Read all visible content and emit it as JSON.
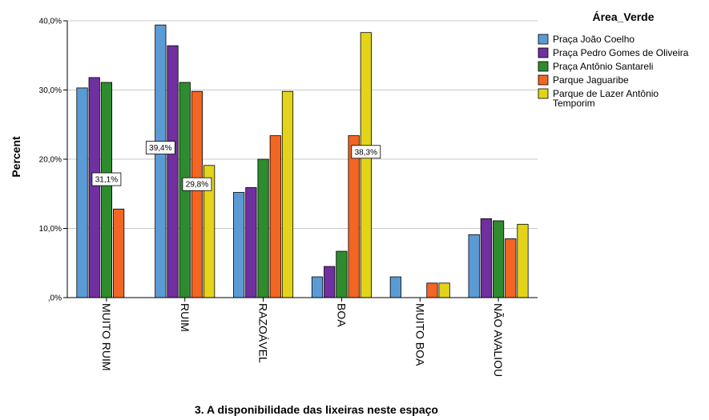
{
  "chart_data": {
    "type": "bar",
    "xlabel": "3. A disponibilidade das lixeiras neste espaço",
    "ylabel": "Percent",
    "ylim": [
      0,
      40
    ],
    "yticks": [
      {
        "value": 0,
        "label": ",0%"
      },
      {
        "value": 10,
        "label": "10,0%"
      },
      {
        "value": 20,
        "label": "20,0%"
      },
      {
        "value": 30,
        "label": "30,0%"
      },
      {
        "value": 40,
        "label": "40,0%"
      }
    ],
    "grid": "horizontal",
    "legend_position": "right",
    "legend_title": "Área_Verde",
    "categories": [
      "MUITO RUIM",
      "RUIM",
      "RAZOÁVEL",
      "BOA",
      "MUITO BOA",
      "NÃO AVALIOU"
    ],
    "series": [
      {
        "name": "Praça João Coelho",
        "color": "#5b9bd5",
        "values": [
          30.3,
          39.4,
          15.2,
          3.0,
          3.0,
          9.1
        ]
      },
      {
        "name": "Praça Pedro Gomes de Oliveira",
        "color": "#7030a0",
        "values": [
          31.8,
          36.4,
          15.9,
          4.5,
          0.0,
          11.4
        ]
      },
      {
        "name": "Praça Antônio Santareli",
        "color": "#2e8b2e",
        "values": [
          31.1,
          31.1,
          20.0,
          6.7,
          0.0,
          11.1
        ]
      },
      {
        "name": "Parque Jaguaribe",
        "color": "#f26522",
        "values": [
          12.8,
          29.8,
          23.4,
          23.4,
          2.1,
          8.5
        ]
      },
      {
        "name": "Parque de Lazer Antônio Temporim",
        "color": "#e3d41a",
        "values": [
          0.0,
          19.1,
          29.8,
          38.3,
          2.1,
          10.6
        ]
      }
    ],
    "data_labels": [
      {
        "category": 0,
        "series": 2,
        "text": "31,1%"
      },
      {
        "category": 1,
        "series": 0,
        "text": "39,4%"
      },
      {
        "category": 1,
        "series": 3,
        "text": "29,8%"
      },
      {
        "category": 3,
        "series": 4,
        "text": "38,3%"
      }
    ]
  }
}
